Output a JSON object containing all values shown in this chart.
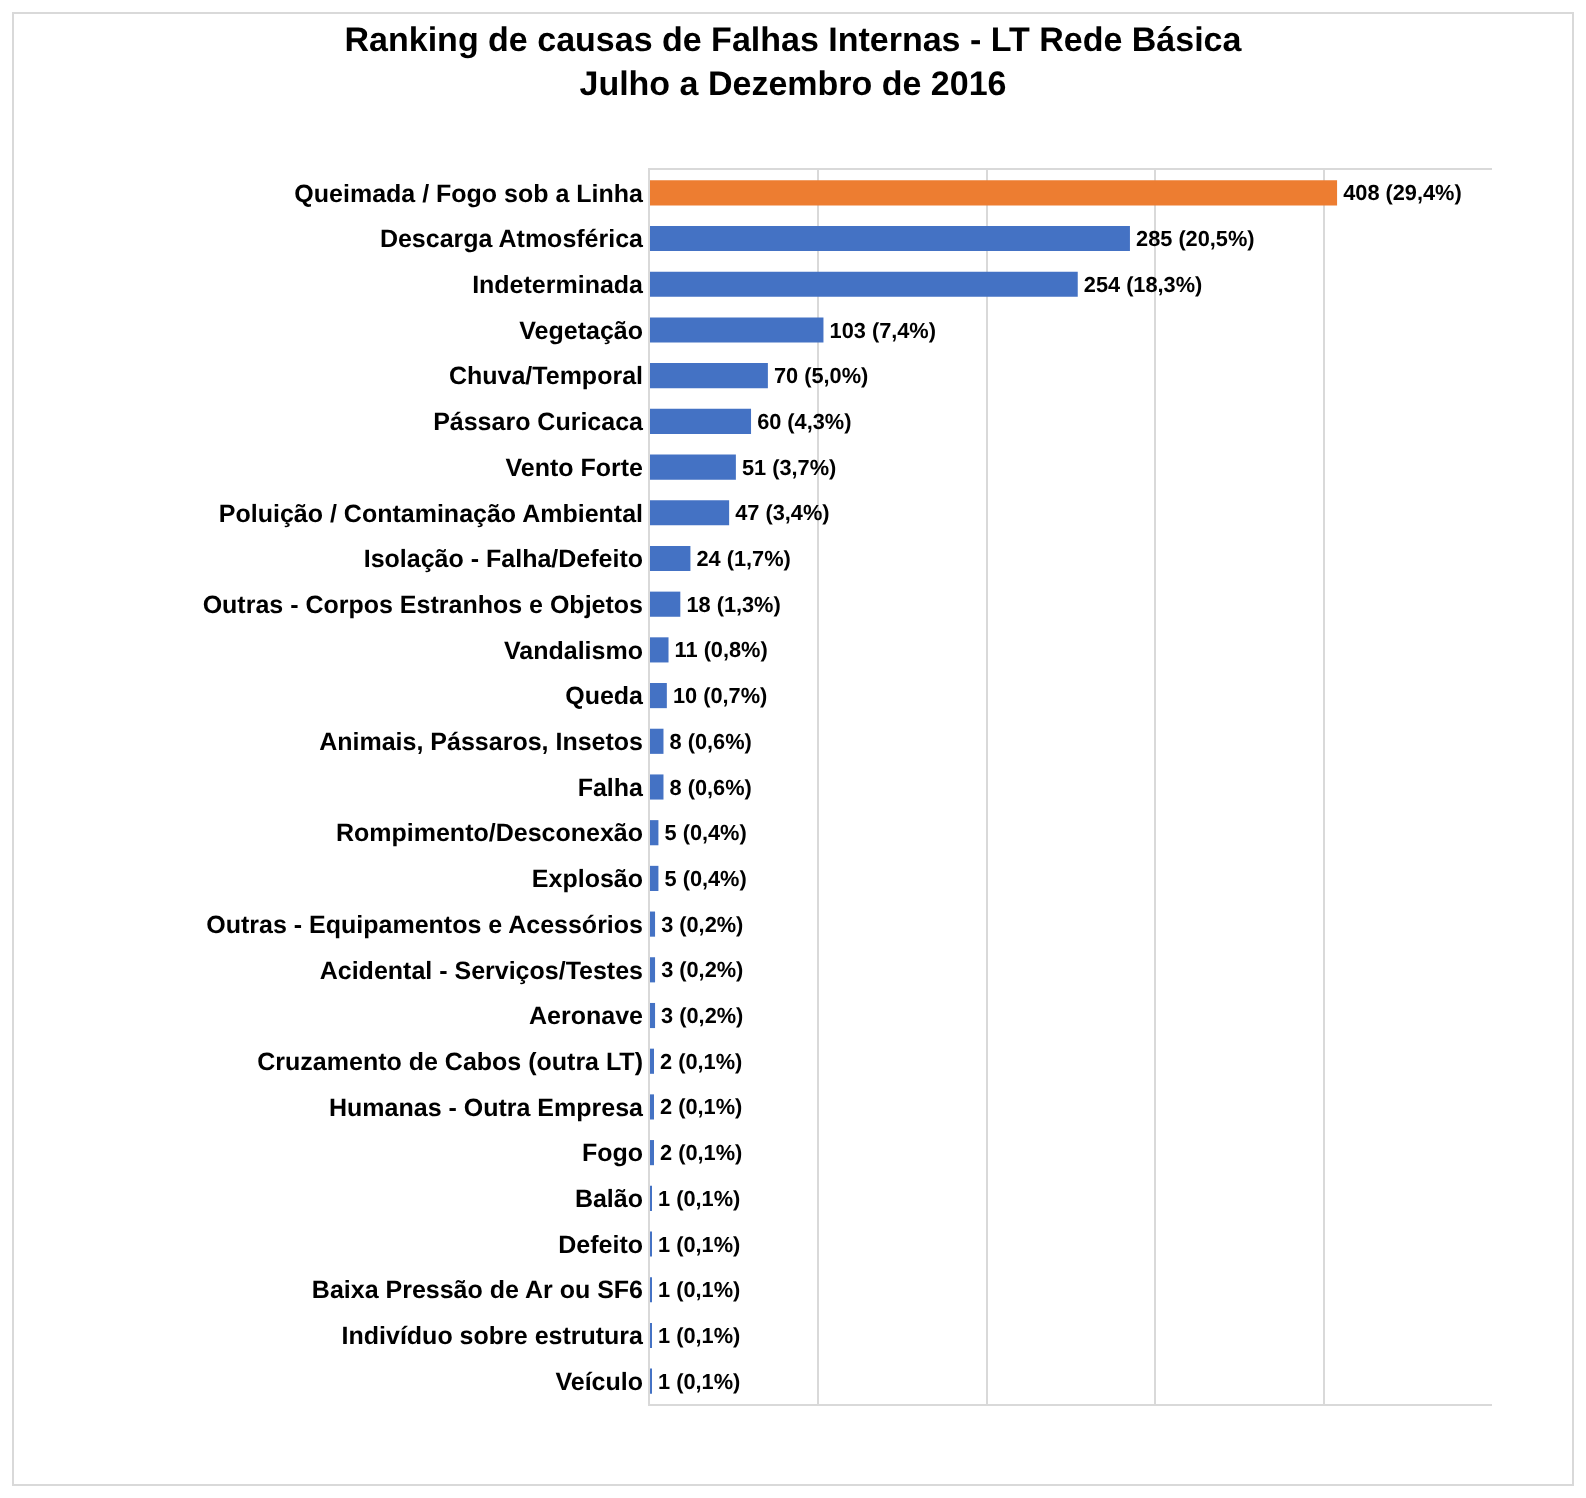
{
  "chart_data": {
    "type": "bar",
    "orientation": "horizontal",
    "title": "Ranking de causas de Falhas Internas - LT Rede Básica\nJulho a Dezembro de 2016",
    "categories": [
      "Queimada / Fogo sob a Linha",
      "Descarga Atmosférica",
      "Indeterminada",
      "Vegetação",
      "Chuva/Temporal",
      "Pássaro Curicaca",
      "Vento Forte",
      "Poluição / Contaminação Ambiental",
      "Isolação - Falha/Defeito",
      "Outras - Corpos Estranhos e Objetos",
      "Vandalismo",
      "Queda",
      "Animais, Pássaros, Insetos",
      "Falha",
      "Rompimento/Desconexão",
      "Explosão",
      "Outras - Equipamentos e Acessórios",
      "Acidental - Serviços/Testes",
      "Aeronave",
      "Cruzamento de Cabos (outra LT)",
      "Humanas - Outra Empresa",
      "Fogo",
      "Balão",
      "Defeito",
      "Baixa Pressão de Ar ou SF6",
      "Indivíduo sobre estrutura",
      "Veículo"
    ],
    "values": [
      408,
      285,
      254,
      103,
      70,
      60,
      51,
      47,
      24,
      18,
      11,
      10,
      8,
      8,
      5,
      5,
      3,
      3,
      3,
      2,
      2,
      2,
      1,
      1,
      1,
      1,
      1
    ],
    "value_labels": [
      "408 (29,4%)",
      "285 (20,5%)",
      "254 (18,3%)",
      "103 (7,4%)",
      "70 (5,0%)",
      "60 (4,3%)",
      "51 (3,7%)",
      "47 (3,4%)",
      "24 (1,7%)",
      "18 (1,3%)",
      "11 (0,8%)",
      "10 (0,7%)",
      "8 (0,6%)",
      "8 (0,6%)",
      "5 (0,4%)",
      "5 (0,4%)",
      "3 (0,2%)",
      "3 (0,2%)",
      "3 (0,2%)",
      "2 (0,1%)",
      "2 (0,1%)",
      "2 (0,1%)",
      "1 (0,1%)",
      "1 (0,1%)",
      "1 (0,1%)",
      "1 (0,1%)",
      "1 (0,1%)"
    ],
    "colors": [
      "#ed7d31",
      "#4472c4",
      "#4472c4",
      "#4472c4",
      "#4472c4",
      "#4472c4",
      "#4472c4",
      "#4472c4",
      "#4472c4",
      "#4472c4",
      "#4472c4",
      "#4472c4",
      "#4472c4",
      "#4472c4",
      "#4472c4",
      "#4472c4",
      "#4472c4",
      "#4472c4",
      "#4472c4",
      "#4472c4",
      "#4472c4",
      "#4472c4",
      "#4472c4",
      "#4472c4",
      "#4472c4",
      "#4472c4",
      "#4472c4"
    ],
    "xlim": [
      0,
      500
    ],
    "xticks": [
      {
        "value": 0,
        "label": null
      },
      {
        "value": 100,
        "label": null
      },
      {
        "value": 200,
        "label": null
      },
      {
        "value": 300,
        "label": null
      },
      {
        "value": 400,
        "label": null
      }
    ],
    "grid": "x",
    "tick_labels": "y",
    "legend": false
  }
}
